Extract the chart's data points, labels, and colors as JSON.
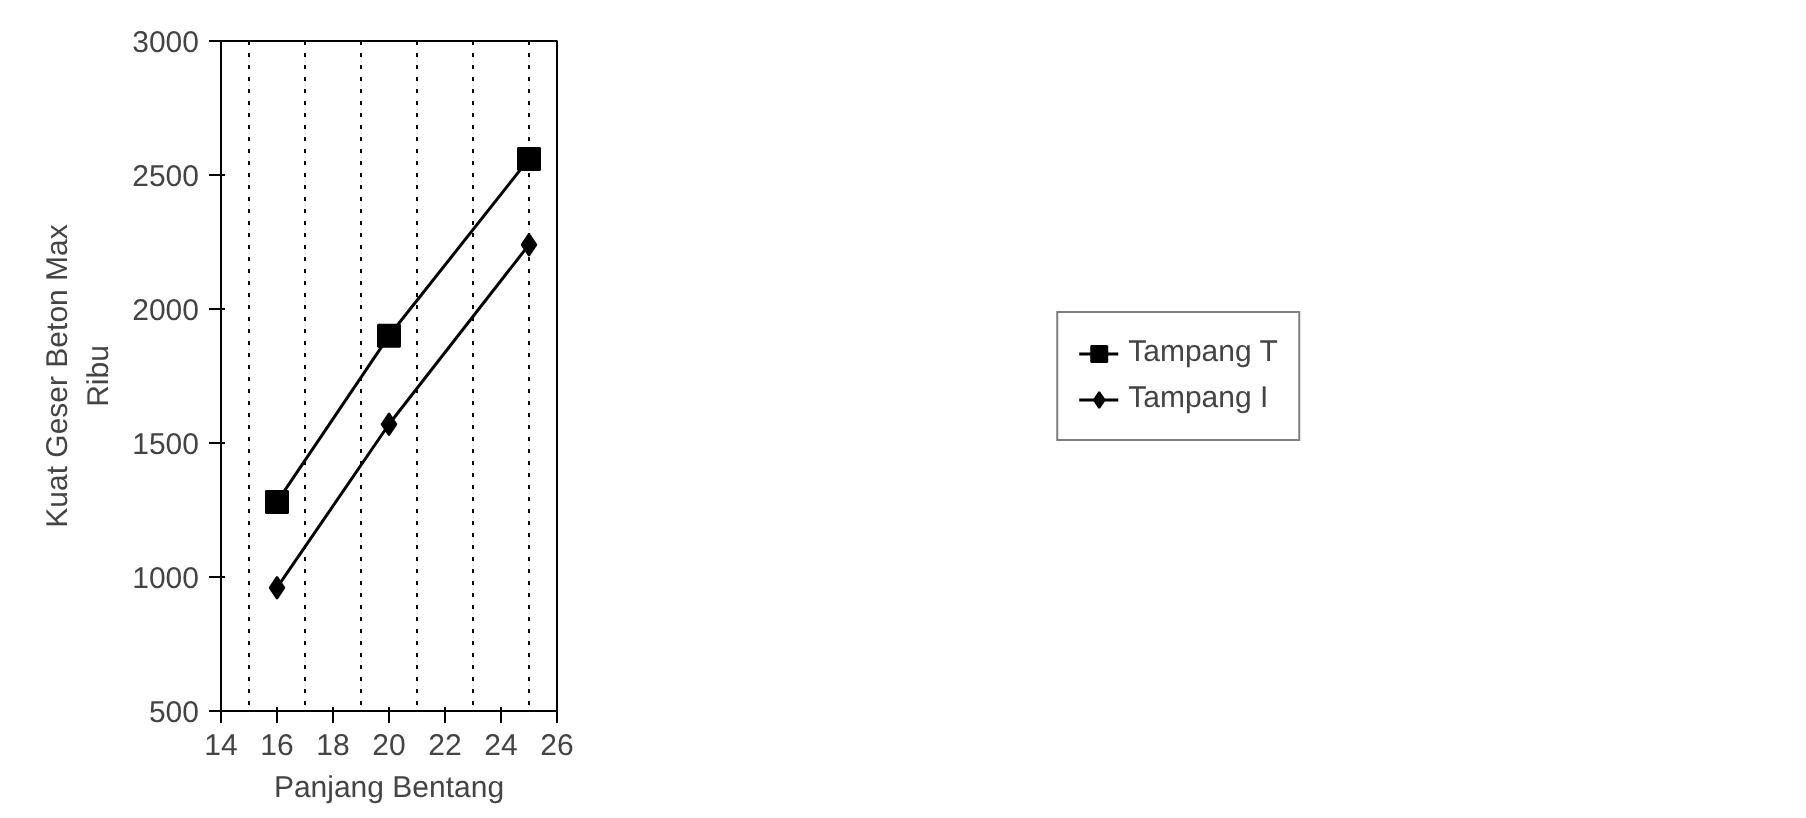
{
  "chart_data": {
    "type": "line",
    "xlabel": "Panjang Bentang",
    "ylabel": "Kuat Geser Beton Max\nRibu",
    "x": [
      16,
      20,
      25
    ],
    "series": [
      {
        "name": "Tampang T",
        "color": "#000000",
        "values": [
          1280,
          1900,
          2560
        ],
        "marker": "square"
      },
      {
        "name": "Tampang I",
        "color": "#000000",
        "values": [
          960,
          1570,
          2240
        ],
        "marker": "diamond"
      }
    ],
    "xlim": [
      14,
      26
    ],
    "xticks": [
      14,
      16,
      18,
      20,
      22,
      24,
      26
    ],
    "ylim": [
      500,
      3000
    ],
    "yticks": [
      500,
      1000,
      1500,
      2000,
      2500,
      3000
    ],
    "ref_lines": [
      {
        "axis": "x",
        "value": 15,
        "line_style": "dotted"
      },
      {
        "axis": "x",
        "value": 17,
        "line_style": "dotted"
      },
      {
        "axis": "x",
        "value": 19,
        "line_style": "dotted"
      },
      {
        "axis": "x",
        "value": 21,
        "line_style": "dotted"
      },
      {
        "axis": "x",
        "value": 23,
        "line_style": "dotted"
      },
      {
        "axis": "x",
        "value": 25,
        "line_style": "dotted"
      }
    ],
    "legend": "right",
    "line_style": "solid"
  }
}
